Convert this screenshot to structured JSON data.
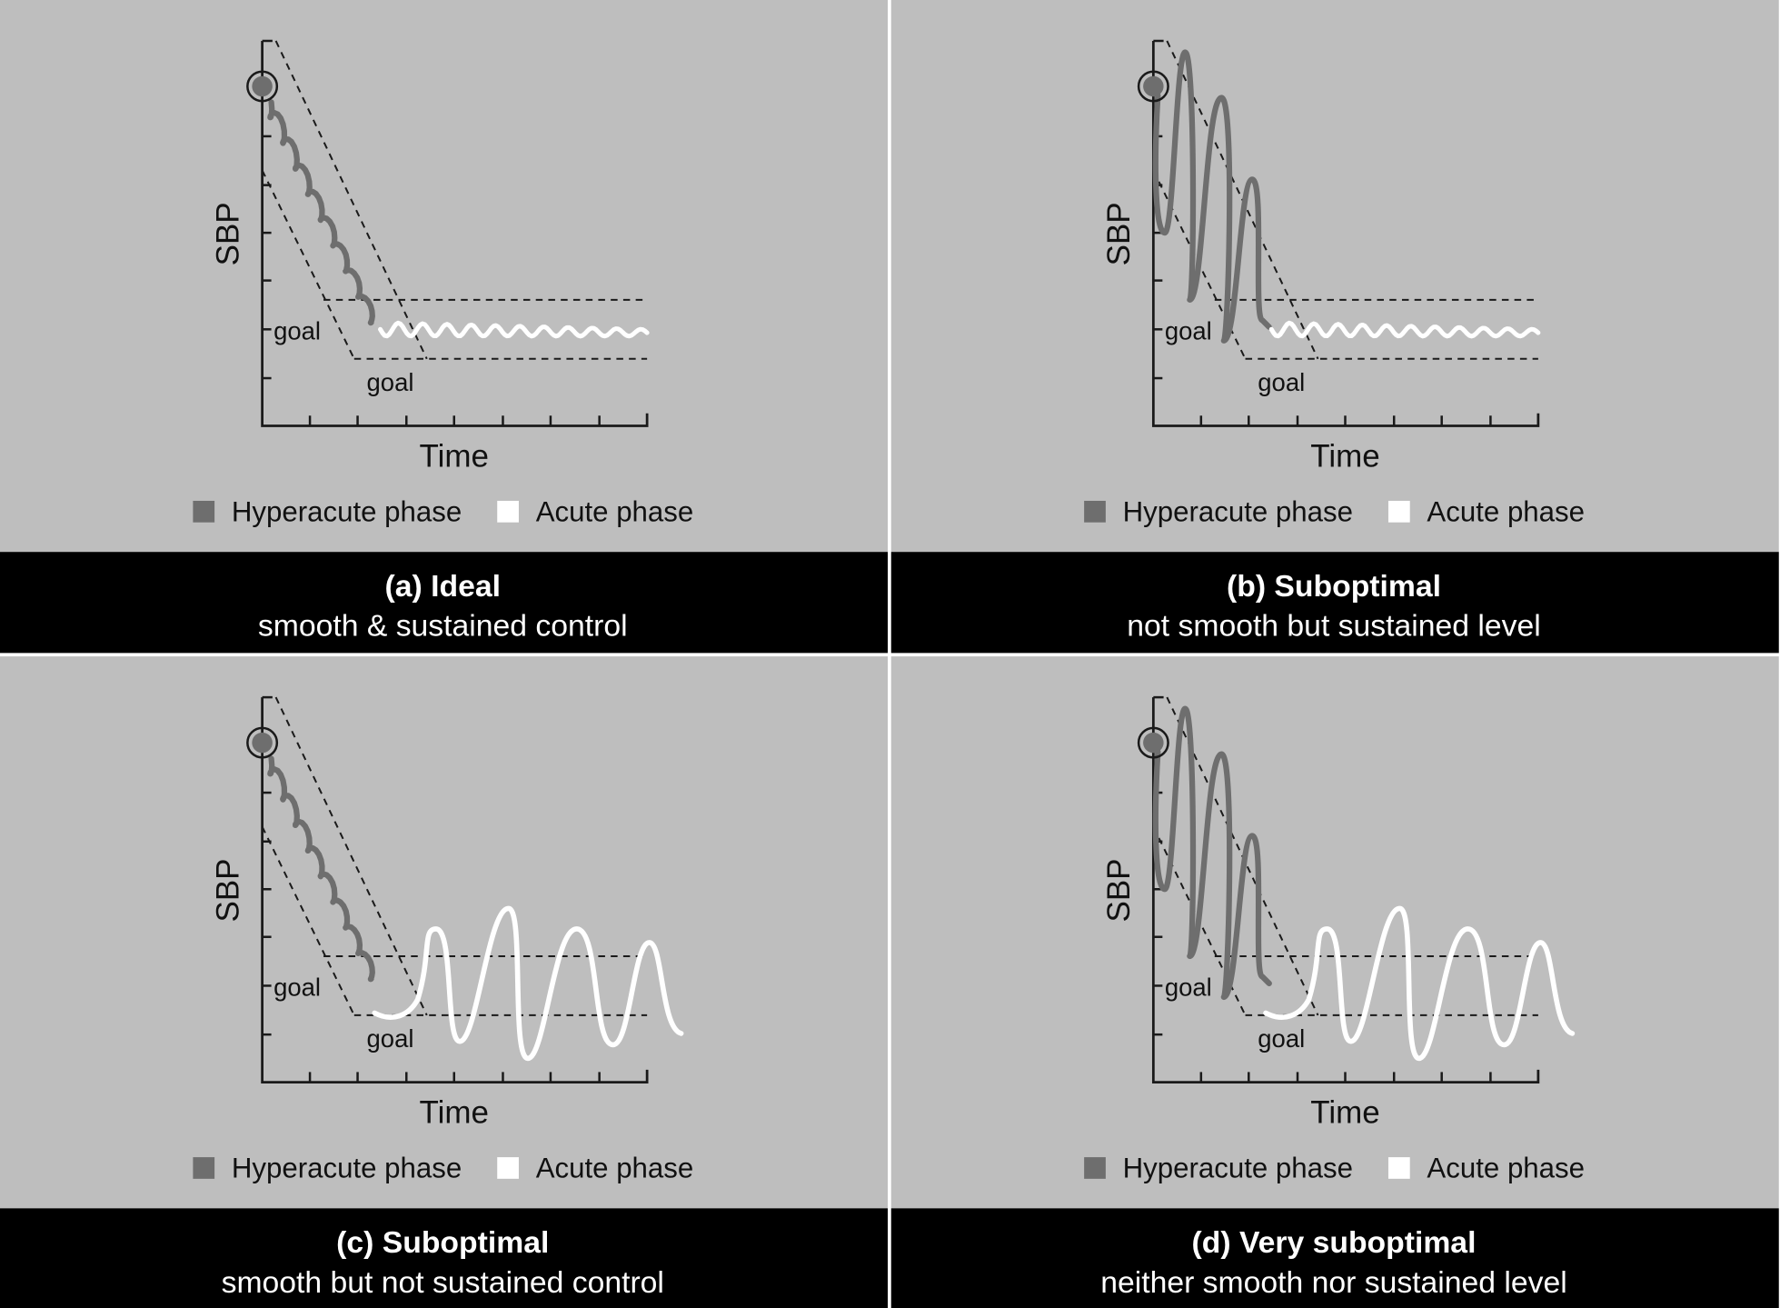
{
  "axes": {
    "ylabel": "SBP",
    "xlabel": "Time",
    "goal_label": "goal"
  },
  "legend": {
    "hyperacute": "Hyperacute phase",
    "acute": "Acute phase"
  },
  "colors": {
    "panel_bg": "#bebebe",
    "caption_bg": "#000000",
    "hyperacute": "#6e6e6e",
    "acute": "#ffffff",
    "divider": "#ffffff"
  },
  "panels": [
    {
      "id": "a",
      "title": "(a) Ideal",
      "subtitle": "smooth  & sustained control",
      "hyperacute_pattern": "smooth",
      "acute_pattern": "sustained"
    },
    {
      "id": "b",
      "title": "(b) Suboptimal",
      "subtitle": "not smooth but sustained level",
      "hyperacute_pattern": "oscillating",
      "acute_pattern": "sustained"
    },
    {
      "id": "c",
      "title": "(c) Suboptimal",
      "subtitle": "smooth but not sustained control",
      "hyperacute_pattern": "smooth",
      "acute_pattern": "oscillating"
    },
    {
      "id": "d",
      "title": "(d) Very suboptimal",
      "subtitle": "neither smooth nor sustained level",
      "hyperacute_pattern": "oscillating",
      "acute_pattern": "oscillating"
    }
  ]
}
